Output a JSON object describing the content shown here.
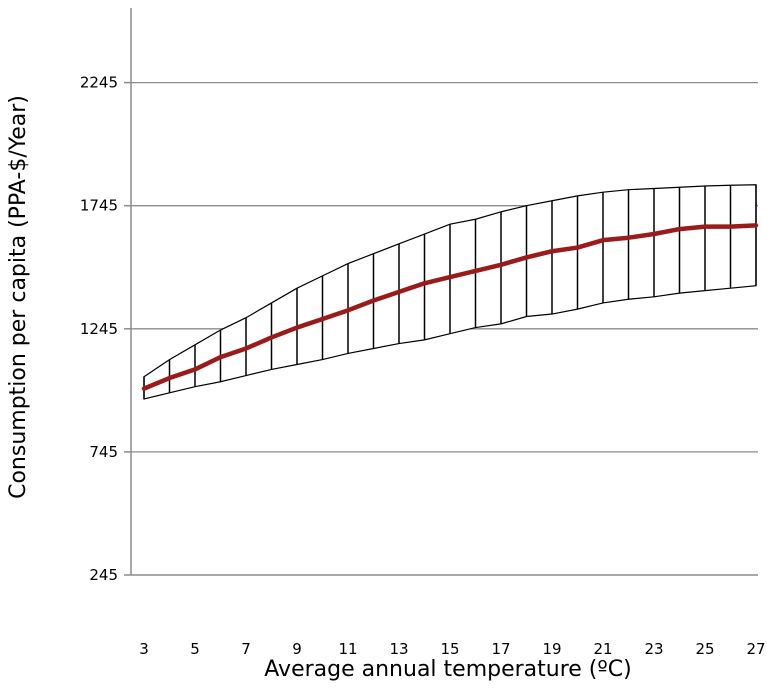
{
  "chart_data": {
    "type": "line",
    "title": "",
    "xlabel": "Average annual temperature (ºC)",
    "ylabel": "Consumption per capita (PPA-$/Year)",
    "xlim": [
      2.5,
      27.4
    ],
    "ylim": [
      245,
      2545
    ],
    "x_ticks": [
      3,
      5,
      7,
      9,
      11,
      13,
      15,
      17,
      19,
      21,
      23,
      25,
      27
    ],
    "y_ticks": [
      245,
      745,
      1245,
      1745,
      2245
    ],
    "grid": {
      "horizontal": true,
      "vertical": false
    },
    "x": [
      3,
      4,
      5,
      6,
      7,
      8,
      9,
      10,
      11,
      12,
      13,
      14,
      15,
      16,
      17,
      18,
      19,
      20,
      21,
      22,
      23,
      24,
      25,
      26,
      27
    ],
    "series": [
      {
        "values": [
          1002,
          1045,
          1080,
          1130,
          1165,
          1210,
          1250,
          1285,
          1320,
          1360,
          1395,
          1430,
          1455,
          1480,
          1505,
          1535,
          1560,
          1575,
          1605,
          1615,
          1630,
          1650,
          1660,
          1660,
          1665
        ],
        "color": "#9b1b1b"
      }
    ],
    "band": {
      "upper": [
        1050,
        1120,
        1180,
        1240,
        1290,
        1350,
        1410,
        1460,
        1510,
        1550,
        1590,
        1630,
        1670,
        1690,
        1720,
        1745,
        1765,
        1785,
        1800,
        1810,
        1815,
        1820,
        1825,
        1828,
        1830
      ],
      "lower": [
        960,
        985,
        1010,
        1030,
        1055,
        1080,
        1100,
        1120,
        1145,
        1165,
        1185,
        1200,
        1225,
        1250,
        1265,
        1295,
        1305,
        1325,
        1350,
        1365,
        1375,
        1390,
        1400,
        1410,
        1420
      ],
      "stroke": "#000000",
      "fill": "#ffffff"
    }
  }
}
